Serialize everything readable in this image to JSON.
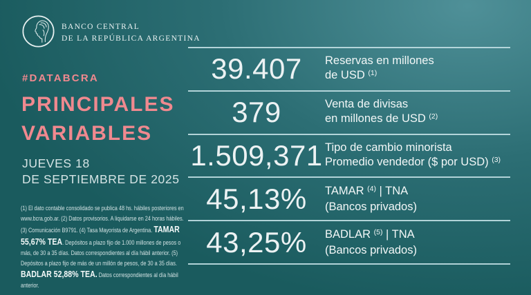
{
  "meta": {
    "accent_pink": "#f0898f",
    "bg_dark": "#1a5b5e",
    "bg_light": "#4f9098",
    "divider_color": "#bfdde2"
  },
  "header": {
    "bank_name_line1": "BANCO CENTRAL",
    "bank_name_line2": "DE LA REPÚBLICA ARGENTINA",
    "logo_icon": "bcra-liberty-medallion"
  },
  "left": {
    "hashtag": "#DATABCRA",
    "title_line1": "PRINCIPALES",
    "title_line2": "VARIABLES",
    "date_line1": "JUEVES 18",
    "date_line2": "DE SEPTIEMBRE DE 2025"
  },
  "rows": [
    {
      "value": "39.407",
      "label_lines": [
        [
          {
            "t": "Reservas en millones"
          }
        ],
        [
          {
            "t": "de USD "
          },
          {
            "t": "(1)",
            "sup": true
          }
        ]
      ]
    },
    {
      "value": "379",
      "label_lines": [
        [
          {
            "t": "Venta de divisas"
          }
        ],
        [
          {
            "t": "en millones de USD "
          },
          {
            "t": "(2)",
            "sup": true
          }
        ]
      ]
    },
    {
      "value": "1.509,371",
      "label_lines": [
        [
          {
            "t": "Tipo de cambio minorista"
          }
        ],
        [
          {
            "t": "Promedio vendedor ($ por USD) "
          },
          {
            "t": "(3)",
            "sup": true
          }
        ]
      ]
    },
    {
      "value": "45,13%",
      "label_lines": [
        [
          {
            "t": "TAMAR "
          },
          {
            "t": "(4)",
            "sup": true
          },
          {
            "t": " | TNA"
          }
        ],
        [
          {
            "t": "(Bancos privados)"
          }
        ]
      ]
    },
    {
      "value": "43,25%",
      "label_lines": [
        [
          {
            "t": "BADLAR "
          },
          {
            "t": "(5)",
            "sup": true
          },
          {
            "t": " | TNA"
          }
        ],
        [
          {
            "t": "(Bancos privados)"
          }
        ]
      ]
    }
  ],
  "footnote": {
    "segments": [
      {
        "t": "(1) El dato contable consolidado se publica 48 hs. hábiles posteriores en www.bcra.gob.ar. (2) Datos provisorios. A liquidarse en 24 horas hábiles. (3) Comunicación B9791. (4) Tasa Mayorista de Argentina. "
      },
      {
        "t": "TAMAR 55,67% TEA",
        "b": true
      },
      {
        "t": ". Depósitos a plazo fijo de 1.000 millones de pesos o más, de 30 a 35 días. Datos correspondientes al día hábil anterior. (5) Depósitos a plazo fijo de más de un millón de pesos, de 30 a 35 días. "
      },
      {
        "t": "BADLAR 52,88% TEA.",
        "b": true
      },
      {
        "t": " Datos correspondientes al día hábil anterior."
      }
    ]
  }
}
